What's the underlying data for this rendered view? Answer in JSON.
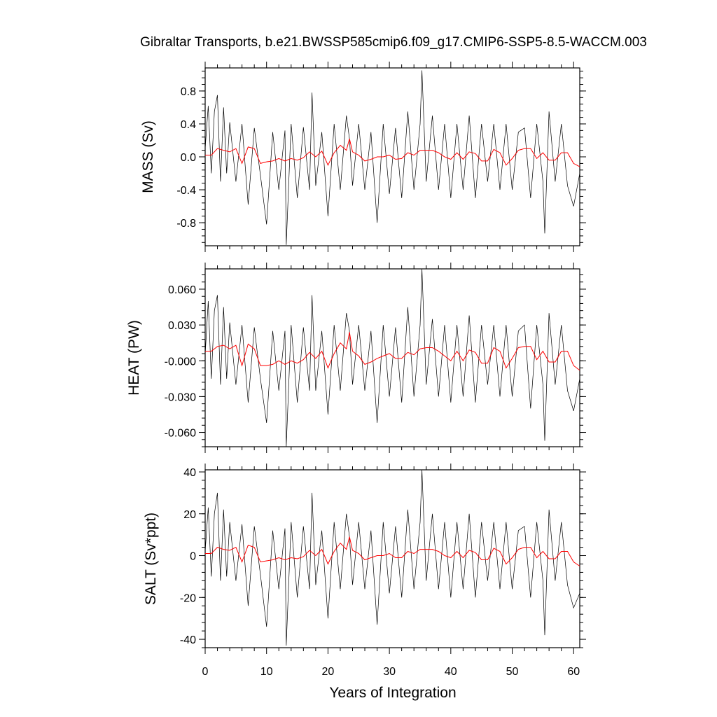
{
  "chart_data": {
    "type": "line",
    "title": "Gibraltar Transports, b.e21.BWSSP585cmip6.f09_g17.CMIP6-SSP5-8.5-WACCM.003",
    "xlabel": "Years of Integration",
    "xlim": [
      0,
      61
    ],
    "x_ticks": [
      "0",
      "10",
      "20",
      "30",
      "40",
      "50",
      "60"
    ],
    "colors": {
      "raw": "#000000",
      "smoothed": "#ff0000"
    },
    "panels": [
      {
        "ylabel": "MASS (Sv)",
        "ylim": [
          -1.08,
          1.08
        ],
        "y_ticks": [
          "0.8",
          "0.4",
          "0.0",
          "-0.4",
          "-0.8"
        ],
        "series": [
          {
            "role": "monthly",
            "x": [
              0,
              0.5,
              1,
              1.5,
              2,
              2.5,
              3,
              3.5,
              4,
              5,
              6,
              7,
              8,
              9,
              10,
              11,
              12,
              13,
              13.2,
              14,
              15,
              16,
              17,
              17.4,
              18,
              19,
              20,
              21,
              22,
              23,
              23.5,
              24,
              25,
              26,
              27,
              28,
              29,
              30,
              31,
              32,
              33,
              34,
              35,
              35.3,
              36,
              37,
              38,
              39,
              40,
              41,
              42,
              43,
              44,
              45,
              46,
              47,
              48,
              49,
              50,
              51,
              52,
              53,
              54,
              55,
              55.3,
              56,
              57,
              58,
              59,
              60,
              61
            ],
            "y": [
              0.1,
              0.62,
              -0.2,
              0.55,
              0.75,
              -0.3,
              0.6,
              -0.2,
              0.42,
              -0.3,
              0.4,
              -0.58,
              0.35,
              -0.22,
              -0.82,
              0.3,
              -0.4,
              0.32,
              -1.07,
              0.4,
              -0.5,
              0.36,
              -0.4,
              0.78,
              -0.35,
              0.3,
              -0.72,
              0.4,
              -0.4,
              0.5,
              0.22,
              -0.35,
              0.4,
              -0.4,
              0.3,
              -0.8,
              0.4,
              -0.45,
              0.35,
              -0.5,
              0.55,
              -0.4,
              0.4,
              1.05,
              -0.3,
              0.5,
              -0.4,
              0.4,
              -0.5,
              0.4,
              -0.4,
              0.5,
              -0.5,
              0.4,
              -0.3,
              0.4,
              -0.4,
              0.4,
              -0.4,
              0.3,
              0.35,
              -0.5,
              0.4,
              -0.3,
              -0.93,
              0.55,
              -0.3,
              0.4,
              -0.35,
              -0.6,
              -0.2
            ]
          },
          {
            "role": "smoothed",
            "x": [
              0,
              1,
              2,
              3,
              4,
              5,
              6,
              7,
              8,
              9,
              10,
              11,
              12,
              13,
              14,
              15,
              16,
              17,
              18,
              19,
              20,
              21,
              22,
              23,
              23.5,
              24,
              25,
              26,
              27,
              28,
              29,
              30,
              31,
              32,
              33,
              34,
              35,
              36,
              37,
              38,
              39,
              40,
              41,
              42,
              43,
              44,
              45,
              46,
              47,
              48,
              49,
              50,
              51,
              52,
              53,
              54,
              55,
              56,
              57,
              58,
              59,
              60,
              61
            ],
            "y": [
              0.02,
              0.02,
              0.1,
              0.08,
              0.06,
              0.1,
              -0.08,
              0.12,
              0.1,
              -0.08,
              -0.06,
              -0.05,
              -0.02,
              -0.05,
              -0.02,
              -0.04,
              -0.01,
              0.06,
              0.0,
              0.07,
              -0.1,
              0.05,
              0.14,
              0.08,
              0.22,
              0.06,
              0.02,
              -0.05,
              -0.03,
              0.0,
              0.0,
              0.02,
              -0.03,
              -0.02,
              0.05,
              0.02,
              0.08,
              0.08,
              0.08,
              0.05,
              0.0,
              -0.03,
              0.05,
              -0.03,
              0.06,
              0.04,
              -0.05,
              -0.05,
              0.09,
              0.05,
              -0.1,
              -0.02,
              0.08,
              0.1,
              0.1,
              -0.02,
              0.05,
              -0.04,
              -0.04,
              0.05,
              0.05,
              -0.08,
              -0.12
            ]
          }
        ]
      },
      {
        "ylabel": "HEAT (PW)",
        "ylim": [
          -0.072,
          0.077
        ],
        "y_ticks": [
          "0.060",
          "0.030",
          "-0.000",
          "-0.030",
          "-0.060"
        ],
        "series": [
          {
            "role": "monthly",
            "x": [
              0,
              0.5,
              1,
              1.5,
              2,
              2.5,
              3,
              3.5,
              4,
              5,
              6,
              7,
              8,
              9,
              10,
              11,
              12,
              13,
              13.2,
              14,
              15,
              16,
              17,
              17.4,
              18,
              19,
              20,
              21,
              22,
              23,
              23.5,
              24,
              25,
              26,
              27,
              28,
              29,
              30,
              31,
              32,
              33,
              34,
              35,
              35.3,
              36,
              37,
              38,
              39,
              40,
              41,
              42,
              43,
              44,
              45,
              46,
              47,
              48,
              49,
              50,
              51,
              52,
              53,
              54,
              55,
              55.3,
              56,
              57,
              58,
              59,
              60,
              61
            ],
            "y": [
              0.005,
              0.05,
              -0.015,
              0.042,
              0.055,
              -0.02,
              0.045,
              -0.015,
              0.032,
              -0.02,
              0.03,
              -0.035,
              0.028,
              -0.015,
              -0.052,
              0.025,
              -0.025,
              0.025,
              -0.072,
              0.03,
              -0.035,
              0.028,
              -0.025,
              0.055,
              -0.025,
              0.025,
              -0.045,
              0.03,
              -0.025,
              0.04,
              0.025,
              -0.02,
              0.03,
              -0.025,
              0.025,
              -0.052,
              0.03,
              -0.03,
              0.028,
              -0.035,
              0.045,
              -0.03,
              0.03,
              0.077,
              -0.02,
              0.035,
              -0.03,
              0.03,
              -0.035,
              0.03,
              -0.03,
              0.038,
              -0.035,
              0.03,
              -0.02,
              0.03,
              -0.03,
              0.03,
              -0.03,
              0.025,
              0.03,
              -0.04,
              0.03,
              -0.02,
              -0.067,
              0.04,
              -0.02,
              0.03,
              -0.025,
              -0.042,
              -0.015
            ]
          },
          {
            "role": "smoothed",
            "x": [
              0,
              1,
              2,
              3,
              4,
              5,
              6,
              7,
              8,
              9,
              10,
              11,
              12,
              13,
              14,
              15,
              16,
              17,
              18,
              19,
              20,
              21,
              22,
              23,
              23.5,
              24,
              25,
              26,
              27,
              28,
              29,
              30,
              31,
              32,
              33,
              34,
              35,
              36,
              37,
              38,
              39,
              40,
              41,
              42,
              43,
              44,
              45,
              46,
              47,
              48,
              49,
              50,
              51,
              52,
              53,
              54,
              55,
              56,
              57,
              58,
              59,
              60,
              61
            ],
            "y": [
              0.008,
              0.008,
              0.012,
              0.013,
              0.01,
              0.013,
              -0.004,
              0.014,
              0.01,
              -0.004,
              -0.004,
              -0.003,
              0.0,
              -0.003,
              0.0,
              -0.002,
              0.001,
              0.007,
              0.002,
              0.008,
              -0.006,
              0.006,
              0.015,
              0.01,
              0.024,
              0.008,
              0.004,
              -0.003,
              -0.001,
              0.002,
              0.004,
              0.006,
              0.002,
              0.002,
              0.007,
              0.005,
              0.01,
              0.011,
              0.011,
              0.008,
              0.004,
              0.0,
              0.008,
              0.0,
              0.009,
              0.007,
              -0.002,
              -0.002,
              0.011,
              0.008,
              -0.006,
              0.002,
              0.011,
              0.012,
              0.012,
              0.001,
              0.008,
              -0.001,
              -0.001,
              0.008,
              0.008,
              -0.004,
              -0.008
            ]
          }
        ]
      },
      {
        "ylabel": "SALT (Sv*ppt)",
        "ylim": [
          -44,
          41
        ],
        "y_ticks": [
          "40",
          "20",
          "0",
          "-20",
          "-40"
        ],
        "series": [
          {
            "role": "monthly",
            "x": [
              0,
              0.5,
              1,
              1.5,
              2,
              2.5,
              3,
              3.5,
              4,
              5,
              6,
              7,
              8,
              9,
              10,
              11,
              12,
              13,
              13.2,
              14,
              15,
              16,
              17,
              17.4,
              18,
              19,
              20,
              21,
              22,
              23,
              23.5,
              24,
              25,
              26,
              27,
              28,
              29,
              30,
              31,
              32,
              33,
              34,
              35,
              35.3,
              36,
              37,
              38,
              39,
              40,
              41,
              42,
              43,
              44,
              45,
              46,
              47,
              48,
              49,
              50,
              51,
              52,
              53,
              54,
              55,
              55.3,
              56,
              57,
              58,
              59,
              60,
              61
            ],
            "y": [
              2,
              23,
              -10,
              20,
              30,
              -12,
              22,
              -10,
              16,
              -12,
              15,
              -24,
              14,
              -9,
              -34,
              12,
              -16,
              13,
              -43,
              16,
              -20,
              14,
              -16,
              30,
              -14,
              12,
              -30,
              16,
              -16,
              20,
              9,
              -14,
              16,
              -16,
              12,
              -33,
              16,
              -18,
              14,
              -20,
              22,
              -16,
              16,
              41,
              -12,
              20,
              -16,
              16,
              -20,
              16,
              -16,
              20,
              -20,
              16,
              -12,
              16,
              -16,
              16,
              -16,
              12,
              14,
              -20,
              16,
              -12,
              -38,
              22,
              -12,
              16,
              -14,
              -25,
              -18
            ]
          },
          {
            "role": "smoothed",
            "x": [
              0,
              1,
              2,
              3,
              4,
              5,
              6,
              7,
              8,
              9,
              10,
              11,
              12,
              13,
              14,
              15,
              16,
              17,
              18,
              19,
              20,
              21,
              22,
              23,
              23.5,
              24,
              25,
              26,
              27,
              28,
              29,
              30,
              31,
              32,
              33,
              34,
              35,
              36,
              37,
              38,
              39,
              40,
              41,
              42,
              43,
              44,
              45,
              46,
              47,
              48,
              49,
              50,
              51,
              52,
              53,
              54,
              55,
              56,
              57,
              58,
              59,
              60,
              61
            ],
            "y": [
              1,
              1,
              4,
              3,
              2.5,
              4,
              -3,
              5,
              4,
              -3,
              -2.5,
              -2,
              -1,
              -2,
              -1,
              -1.5,
              -0.5,
              2.5,
              0,
              3,
              -4,
              2,
              6,
              3,
              9,
              2.5,
              1,
              -2,
              -1,
              0,
              0,
              1,
              -1,
              -1,
              2,
              1,
              3,
              3,
              3,
              2,
              0,
              -1,
              2,
              -1,
              2.5,
              1.5,
              -2,
              -2,
              3.5,
              2,
              -4,
              -1,
              3,
              4,
              4,
              -1,
              2,
              -1.5,
              -1.5,
              2,
              2,
              -3,
              -5
            ]
          }
        ]
      }
    ]
  }
}
